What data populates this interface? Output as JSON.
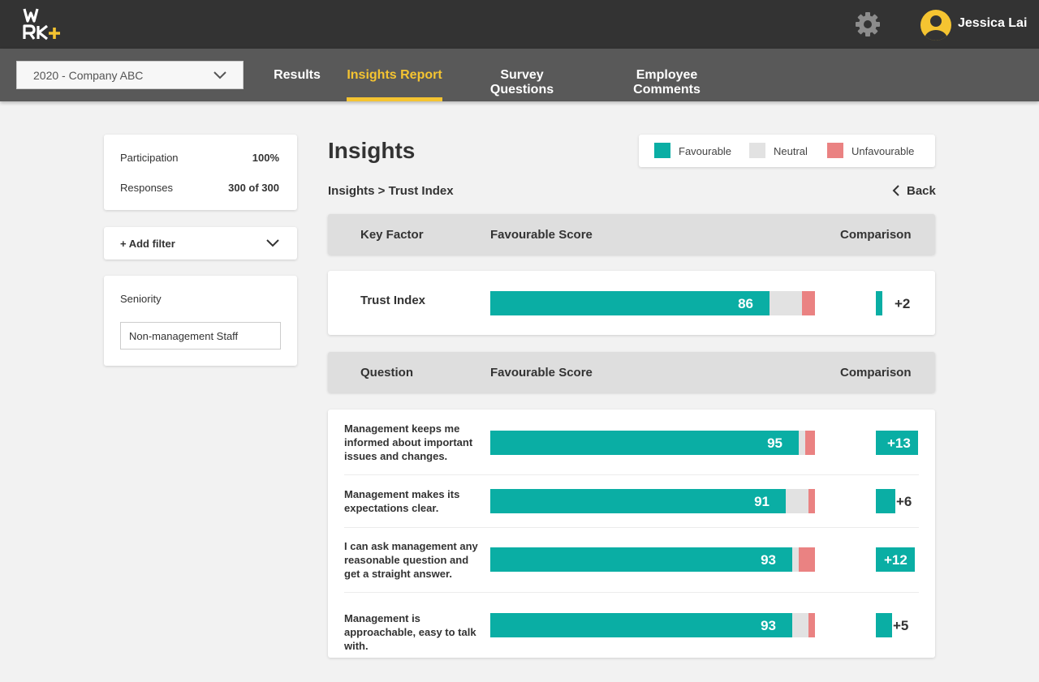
{
  "header": {
    "logo_text": "WRK+",
    "icon_settings": "gear-icon",
    "icon_user": "user-avatar-icon",
    "user_name": "Jessica Lai"
  },
  "nav": {
    "survey_select": "2020 - Company ABC",
    "tabs": [
      {
        "label": "Results",
        "active": false
      },
      {
        "label": "Insights Report",
        "active": true
      },
      {
        "label": "Survey Questions",
        "active": false
      },
      {
        "label": "Employee Comments",
        "active": false
      }
    ]
  },
  "sidebar": {
    "participation_label": "Participation",
    "participation_value": "100%",
    "responses_label": "Responses",
    "responses_value": "300 of 300",
    "add_filter_label": "+ Add filter",
    "seniority_label": "Seniority",
    "seniority_value": "Non-management Staff"
  },
  "main": {
    "title": "Insights",
    "breadcrumb": "Insights > Trust Index",
    "back_label": "Back",
    "legend": [
      {
        "label": "Favourable",
        "color": "#0aaea4"
      },
      {
        "label": "Neutral",
        "color": "#e2e2e2"
      },
      {
        "label": "Unfavourable",
        "color": "#ea8282"
      }
    ],
    "key_factor_header": {
      "col1": "Key Factor",
      "col2": "Favourable Score",
      "col3": "Comparison"
    },
    "key_factor": {
      "label": "Trust Index",
      "favourable": 86,
      "neutral": 10,
      "unfavourable": 4,
      "comparison": 2,
      "comparison_label": "+2"
    },
    "question_header": {
      "col1": "Question",
      "col2": "Favourable Score",
      "col3": "Comparison"
    },
    "questions": [
      {
        "text": "Management keeps me informed about important issues and changes.",
        "favourable": 95,
        "neutral": 2,
        "unfavourable": 3,
        "comparison": 13,
        "comparison_label": "+13"
      },
      {
        "text": "Management makes its expectations clear.",
        "favourable": 91,
        "neutral": 7,
        "unfavourable": 2,
        "comparison": 6,
        "comparison_label": "+6"
      },
      {
        "text": "I can ask management any reasonable question and get a straight answer.",
        "favourable": 93,
        "neutral": 2,
        "unfavourable": 5,
        "comparison": 12,
        "comparison_label": "+12"
      },
      {
        "text": "Management is approachable, easy to talk with.",
        "favourable": 93,
        "neutral": 5,
        "unfavourable": 2,
        "comparison": 5,
        "comparison_label": "+5"
      }
    ]
  }
}
